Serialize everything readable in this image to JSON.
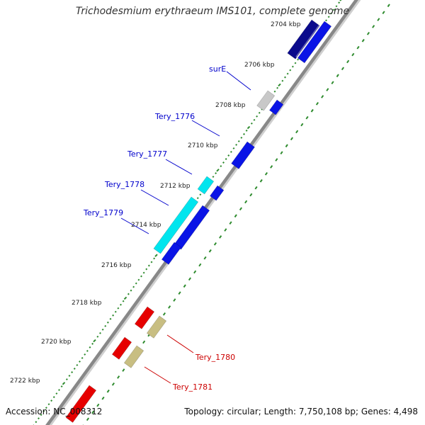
{
  "title": "Trichodesmium erythraeum IMS101, complete genome",
  "footer": {
    "accession": "Accession: NC_008312",
    "summary": "Topology: circular; Length: 7,750,108 bp; Genes: 4,498"
  },
  "scale": [
    {
      "label": "2704 kbp",
      "kbp": 2704
    },
    {
      "label": "2706 kbp",
      "kbp": 2706
    },
    {
      "label": "2708 kbp",
      "kbp": 2708
    },
    {
      "label": "2710 kbp",
      "kbp": 2710
    },
    {
      "label": "2712 kbp",
      "kbp": 2712
    },
    {
      "label": "2714 kbp",
      "kbp": 2714
    },
    {
      "label": "2716 kbp",
      "kbp": 2716
    },
    {
      "label": "2718 kbp",
      "kbp": 2718
    },
    {
      "label": "2720 kbp",
      "kbp": 2720
    },
    {
      "label": "2722 kbp",
      "kbp": 2722
    }
  ],
  "gene_labels": [
    {
      "name": "surE",
      "color": "#0000cc"
    },
    {
      "name": "Tery_1776",
      "color": "#0000cc"
    },
    {
      "name": "Tery_1777",
      "color": "#0000cc"
    },
    {
      "name": "Tery_1778",
      "color": "#0000cc"
    },
    {
      "name": "Tery_1779",
      "color": "#0000cc"
    },
    {
      "name": "Tery_1780",
      "color": "#cc0000"
    },
    {
      "name": "Tery_1781",
      "color": "#cc0000"
    }
  ],
  "colors": {
    "backbone": "#888888",
    "tick": "#2e8b2e",
    "blue_gene": "#0a14e6",
    "navy_gene": "#0a0a8c",
    "cyan_gene": "#00e5ee",
    "grey_gene": "#c8c8c8",
    "red_gene": "#e60000",
    "khaki_gene": "#c8be82"
  }
}
